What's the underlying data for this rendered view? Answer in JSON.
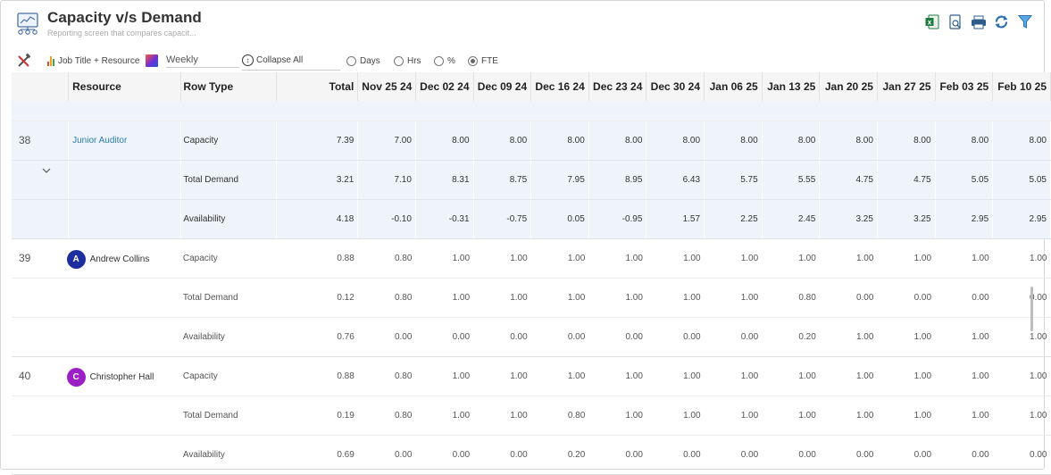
{
  "header": {
    "title": "Capacity v/s Demand",
    "subtitle": "Reporting screen that compares capacit..."
  },
  "toolbar": {
    "icons": [
      "excel-icon",
      "report-preview-icon",
      "print-icon",
      "refresh-icon",
      "filter-icon"
    ]
  },
  "controls": {
    "group_by": "Job Title + Resource",
    "period": "Weekly",
    "collapse_label": "Collapse All",
    "units": [
      {
        "label": "Days",
        "selected": false
      },
      {
        "label": "Hrs",
        "selected": false
      },
      {
        "label": "%",
        "selected": false
      },
      {
        "label": "FTE",
        "selected": true
      }
    ]
  },
  "table": {
    "columns": {
      "resource": "Resource",
      "row_type": "Row Type",
      "total": "Total",
      "periods": [
        "Nov 25 24",
        "Dec 02 24",
        "Dec 09 24",
        "Dec 16 24",
        "Dec 23 24",
        "Dec 30 24",
        "Jan 06 25",
        "Jan 13 25",
        "Jan 20 25",
        "Jan 27 25",
        "Feb 03 25",
        "Feb 10 25"
      ]
    },
    "groups": [
      {
        "index": "38",
        "name": "Junior Auditor",
        "rows": [
          {
            "type": "Capacity",
            "total": "7.39",
            "values": [
              "7.00",
              "8.00",
              "8.00",
              "8.00",
              "8.00",
              "8.00",
              "8.00",
              "8.00",
              "8.00",
              "8.00",
              "8.00",
              "8.00"
            ]
          },
          {
            "type": "Total Demand",
            "total": "3.21",
            "values": [
              "7.10",
              "8.31",
              "8.75",
              "7.95",
              "8.95",
              "6.43",
              "5.75",
              "5.55",
              "4.75",
              "4.75",
              "5.05",
              "5.05"
            ]
          },
          {
            "type": "Availability",
            "total": "4.18",
            "values": [
              "-0.10",
              "-0.31",
              "-0.75",
              "0.05",
              "-0.95",
              "1.57",
              "2.25",
              "2.45",
              "3.25",
              "3.25",
              "2.95",
              "2.95"
            ]
          }
        ]
      },
      {
        "index": "39",
        "name": "Andrew Collins",
        "initial": "A",
        "avatar_color": "#1d2f9e",
        "rows": [
          {
            "type": "Capacity",
            "total": "0.88",
            "values": [
              "0.80",
              "1.00",
              "1.00",
              "1.00",
              "1.00",
              "1.00",
              "1.00",
              "1.00",
              "1.00",
              "1.00",
              "1.00",
              "1.00"
            ]
          },
          {
            "type": "Total Demand",
            "total": "0.12",
            "values": [
              "0.80",
              "1.00",
              "1.00",
              "1.00",
              "1.00",
              "1.00",
              "1.00",
              "0.80",
              "0.00",
              "0.00",
              "0.00",
              "0.00"
            ]
          },
          {
            "type": "Availability",
            "total": "0.76",
            "values": [
              "0.00",
              "0.00",
              "0.00",
              "0.00",
              "0.00",
              "0.00",
              "0.00",
              "0.20",
              "1.00",
              "1.00",
              "1.00",
              "1.00"
            ]
          }
        ]
      },
      {
        "index": "40",
        "name": "Christopher Hall",
        "initial": "C",
        "avatar_color": "#9b1fc4",
        "rows": [
          {
            "type": "Capacity",
            "total": "0.88",
            "values": [
              "0.80",
              "1.00",
              "1.00",
              "1.00",
              "1.00",
              "1.00",
              "1.00",
              "1.00",
              "1.00",
              "1.00",
              "1.00",
              "1.00"
            ]
          },
          {
            "type": "Total Demand",
            "total": "0.19",
            "values": [
              "0.80",
              "1.00",
              "1.00",
              "0.80",
              "1.00",
              "1.00",
              "1.00",
              "1.00",
              "1.00",
              "1.00",
              "1.00",
              "1.00"
            ]
          },
          {
            "type": "Availability",
            "total": "0.69",
            "values": [
              "0.00",
              "0.00",
              "0.00",
              "0.20",
              "0.00",
              "0.00",
              "0.00",
              "0.00",
              "0.00",
              "0.00",
              "0.00",
              "0.00"
            ]
          }
        ]
      }
    ]
  },
  "colors": {
    "highlight_row": "#eff4fa",
    "negative": "#e00000",
    "link": "#2a7ab0"
  }
}
